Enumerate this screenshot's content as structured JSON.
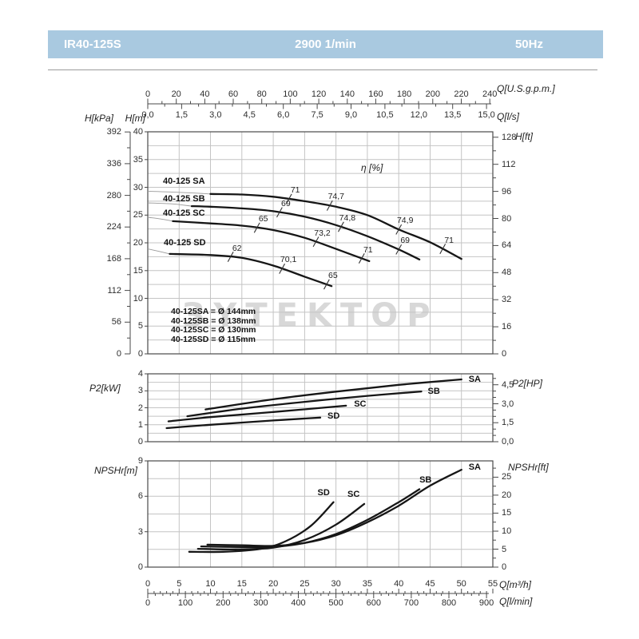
{
  "header": {
    "model": "IR40-125S",
    "speed": "2900 1/min",
    "frequency": "50Hz"
  },
  "colors": {
    "header_bg": "#a9c9e0",
    "header_text": "#ffffff",
    "curve": "#161616",
    "grid": "#c4c4c4",
    "axis": "#4a4a4a",
    "watermark": "#d8d8d8"
  },
  "watermark": {
    "text": "ЗYTEKTOP"
  },
  "chart_data": [
    {
      "id": "head-flow",
      "type": "line",
      "title": "Head vs Flow",
      "xlim_m3h": [
        0,
        55
      ],
      "ylim_m": [
        0,
        40
      ],
      "grid": {
        "x_step": 5,
        "y_step": 2.5
      },
      "efficiency_label": "η [%]",
      "axes": {
        "top_gpm": {
          "label": "Q[U.S.g.p.m.]",
          "major": [
            0,
            20,
            40,
            60,
            80,
            100,
            120,
            140,
            160,
            180,
            200,
            220,
            240
          ],
          "minor_step": 10
        },
        "top_ls": {
          "label": "Q[l/s]",
          "major_labels": [
            "0,0",
            "1,5",
            "3,0",
            "4,5",
            "6,0",
            "7,5",
            "9,0",
            "10,5",
            "12,0",
            "13,5",
            "15,0"
          ],
          "major_values": [
            0,
            1.5,
            3,
            4.5,
            6,
            7.5,
            9,
            10.5,
            12,
            13.5,
            15
          ],
          "minor_step": 0.75
        },
        "left_kpa": {
          "label": "H[kPa]",
          "major": [
            392,
            336,
            280,
            224,
            168,
            112,
            56,
            0
          ],
          "minor_step": 28
        },
        "left_m": {
          "label": "H[m]",
          "major": [
            40,
            35,
            30,
            25,
            20,
            15,
            10,
            5,
            0
          ]
        },
        "right_ft": {
          "label": "H[ft]",
          "major": [
            128,
            112,
            96,
            80,
            64,
            48,
            32,
            16,
            0
          ],
          "minor_step": 8
        }
      },
      "series": [
        {
          "name": "SA",
          "display_name": "40-125 SA",
          "lead": [
            [
              0,
              29.3
            ],
            [
              5,
              29.1
            ],
            [
              10,
              28.8
            ]
          ],
          "points": [
            [
              10,
              28.8
            ],
            [
              15,
              28.7
            ],
            [
              20,
              28.3
            ],
            [
              25,
              27.5
            ],
            [
              30,
              26.5
            ],
            [
              35,
              25.0
            ],
            [
              40,
              22.4
            ],
            [
              45,
              20.1
            ],
            [
              50,
              17.1
            ]
          ]
        },
        {
          "name": "SB",
          "display_name": "40-125 SB",
          "lead": [
            [
              0,
              27.2
            ],
            [
              4,
              27.0
            ],
            [
              7,
              26.6
            ]
          ],
          "points": [
            [
              7,
              26.6
            ],
            [
              10,
              26.5
            ],
            [
              15,
              26.2
            ],
            [
              20,
              25.7
            ],
            [
              25,
              24.7
            ],
            [
              30,
              23.2
            ],
            [
              35,
              21.2
            ],
            [
              40,
              18.8
            ],
            [
              43.3,
              17.0
            ]
          ]
        },
        {
          "name": "SC",
          "display_name": "40-125 SC",
          "lead": [
            [
              0,
              24.6
            ],
            [
              2,
              24.3
            ],
            [
              4,
              23.9
            ]
          ],
          "points": [
            [
              4,
              23.9
            ],
            [
              10,
              23.5
            ],
            [
              15,
              23.1
            ],
            [
              20,
              22.3
            ],
            [
              25,
              20.9
            ],
            [
              30,
              18.9
            ],
            [
              35.3,
              16.7
            ]
          ]
        },
        {
          "name": "SD",
          "display_name": "40-125 SD",
          "lead": [
            [
              0,
              18.9
            ],
            [
              2,
              18.4
            ],
            [
              3.5,
              18.0
            ]
          ],
          "points": [
            [
              3.5,
              18.0
            ],
            [
              10,
              17.8
            ],
            [
              15,
              17.3
            ],
            [
              20,
              15.9
            ],
            [
              25,
              13.9
            ],
            [
              29.3,
              12.2
            ]
          ]
        }
      ],
      "efficiency_marks": [
        {
          "series": 0,
          "q": 22.5,
          "label": "71"
        },
        {
          "series": 0,
          "q": 29,
          "label": "74,7"
        },
        {
          "series": 0,
          "q": 40,
          "label": "74,9"
        },
        {
          "series": 0,
          "q": 47,
          "label": "71"
        },
        {
          "series": 1,
          "q": 21,
          "label": "69"
        },
        {
          "series": 1,
          "q": 30.8,
          "label": "74,8"
        },
        {
          "series": 1,
          "q": 40,
          "label": "69"
        },
        {
          "series": 2,
          "q": 17.4,
          "label": "65"
        },
        {
          "series": 2,
          "q": 26.8,
          "label": "73,2"
        },
        {
          "series": 2,
          "q": 34.1,
          "label": "71"
        },
        {
          "series": 3,
          "q": 13.2,
          "label": "62"
        },
        {
          "series": 3,
          "q": 21.4,
          "label": "70,1"
        },
        {
          "series": 3,
          "q": 28.5,
          "label": "65"
        }
      ],
      "impeller_legend": [
        "40-125SA = Ø 144mm",
        "40-125SB = Ø 138mm",
        "40-125SC = Ø 130mm",
        "40-125SD = Ø 115mm"
      ]
    },
    {
      "id": "power",
      "type": "line",
      "title": "Shaft power vs Flow",
      "xlim_m3h": [
        0,
        55
      ],
      "ylim_kw": [
        0,
        4
      ],
      "grid": {
        "x_step": 5,
        "y_step": 0.5
      },
      "axes": {
        "left_kw": {
          "label": "P2[kW]",
          "major": [
            4,
            3,
            2,
            1,
            0
          ]
        },
        "right_hp": {
          "label": "P2[HP]",
          "major_labels": [
            "4,5",
            "3,0",
            "1,5",
            "0,0"
          ],
          "major_values": [
            4.5,
            3,
            1.5,
            0
          ],
          "minor_step": 0.5
        }
      },
      "series": [
        {
          "name": "SA",
          "points": [
            [
              9.2,
              1.9
            ],
            [
              20,
              2.5
            ],
            [
              30,
              2.95
            ],
            [
              40,
              3.35
            ],
            [
              50,
              3.67
            ]
          ]
        },
        {
          "name": "SB",
          "points": [
            [
              6.3,
              1.5
            ],
            [
              15,
              1.95
            ],
            [
              25,
              2.35
            ],
            [
              35,
              2.7
            ],
            [
              43.6,
              2.96
            ]
          ]
        },
        {
          "name": "SC",
          "points": [
            [
              3.3,
              1.2
            ],
            [
              10,
              1.45
            ],
            [
              20,
              1.75
            ],
            [
              31.6,
              2.12
            ]
          ]
        },
        {
          "name": "SD",
          "points": [
            [
              3.0,
              0.8
            ],
            [
              10,
              1.0
            ],
            [
              20,
              1.25
            ],
            [
              27.5,
              1.42
            ]
          ]
        }
      ]
    },
    {
      "id": "npshr",
      "type": "line",
      "title": "NPSHr vs Flow",
      "xlim_m3h": [
        0,
        55
      ],
      "ylim_m": [
        0,
        9
      ],
      "grid": {
        "x_step": 5,
        "y_step": 1.5
      },
      "axes": {
        "left_m": {
          "label": "NPSHr[m]",
          "major": [
            9,
            6,
            3,
            0
          ]
        },
        "right_ft": {
          "label": "NPSHr[ft]",
          "major": [
            25,
            20,
            15,
            10,
            5,
            0
          ],
          "minor_step": 2.5
        },
        "bottom_m3h": {
          "label": "Q[m³/h]",
          "major": [
            0,
            5,
            10,
            15,
            20,
            25,
            30,
            35,
            40,
            45,
            50,
            55
          ],
          "minor_step": 1
        },
        "bottom_lmin": {
          "label": "Q[l/min]",
          "major": [
            0,
            100,
            200,
            300,
            400,
            500,
            600,
            700,
            800,
            900
          ],
          "minor_step": 20
        }
      },
      "series": [
        {
          "name": "SA",
          "points": [
            [
              9.5,
              1.9
            ],
            [
              15,
              1.85
            ],
            [
              20,
              1.8
            ],
            [
              25,
              2.05
            ],
            [
              30,
              2.7
            ],
            [
              35,
              3.8
            ],
            [
              40,
              5.2
            ],
            [
              45,
              6.9
            ],
            [
              50,
              8.25
            ]
          ]
        },
        {
          "name": "SB",
          "points": [
            [
              8.5,
              1.75
            ],
            [
              15,
              1.7
            ],
            [
              20,
              1.72
            ],
            [
              25,
              2.05
            ],
            [
              30,
              2.8
            ],
            [
              35,
              4.0
            ],
            [
              40,
              5.5
            ],
            [
              43.3,
              6.6
            ]
          ]
        },
        {
          "name": "SC",
          "points": [
            [
              8,
              1.55
            ],
            [
              14,
              1.5
            ],
            [
              20,
              1.65
            ],
            [
              25,
              2.3
            ],
            [
              30,
              3.6
            ],
            [
              34.5,
              5.35
            ]
          ]
        },
        {
          "name": "SD",
          "points": [
            [
              6.6,
              1.3
            ],
            [
              12,
              1.3
            ],
            [
              18,
              1.55
            ],
            [
              22,
              2.2
            ],
            [
              26,
              3.5
            ],
            [
              29.6,
              5.5
            ]
          ]
        }
      ]
    }
  ]
}
